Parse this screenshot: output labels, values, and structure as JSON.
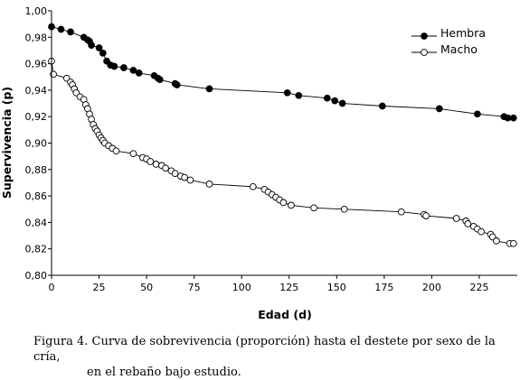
{
  "chart_data": {
    "type": "line",
    "xlabel": "Edad (d)",
    "ylabel": "Supervivencia (p)",
    "xlim": [
      0,
      245
    ],
    "ylim": [
      0.8,
      1.0
    ],
    "xticks": [
      "0",
      "25",
      "50",
      "75",
      "100",
      "125",
      "150",
      "175",
      "200",
      "225"
    ],
    "yticks": [
      "0,80",
      "0,82",
      "0,84",
      "0,86",
      "0,88",
      "0,90",
      "0,92",
      "0,94",
      "0,96",
      "0,98",
      "1,00"
    ],
    "legend_position": "top-right",
    "series": [
      {
        "name": "Hembra",
        "marker": "filled-circle",
        "color": "#000000",
        "points": [
          [
            0,
            0.988
          ],
          [
            5,
            0.986
          ],
          [
            10,
            0.984
          ],
          [
            17,
            0.98
          ],
          [
            19,
            0.978
          ],
          [
            20,
            0.977
          ],
          [
            21,
            0.974
          ],
          [
            25,
            0.972
          ],
          [
            27,
            0.968
          ],
          [
            29,
            0.962
          ],
          [
            31,
            0.959
          ],
          [
            33,
            0.958
          ],
          [
            38,
            0.957
          ],
          [
            43,
            0.955
          ],
          [
            46,
            0.953
          ],
          [
            54,
            0.951
          ],
          [
            56,
            0.949
          ],
          [
            57,
            0.948
          ],
          [
            65,
            0.945
          ],
          [
            66,
            0.944
          ],
          [
            83,
            0.941
          ],
          [
            124,
            0.938
          ],
          [
            130,
            0.936
          ],
          [
            145,
            0.934
          ],
          [
            149,
            0.932
          ],
          [
            153,
            0.93
          ],
          [
            174,
            0.928
          ],
          [
            204,
            0.926
          ],
          [
            224,
            0.922
          ],
          [
            238,
            0.92
          ],
          [
            240,
            0.919
          ],
          [
            243,
            0.919
          ]
        ]
      },
      {
        "name": "Macho",
        "marker": "open-circle",
        "color": "#000000",
        "points": [
          [
            0,
            0.962
          ],
          [
            1,
            0.952
          ],
          [
            8,
            0.949
          ],
          [
            10,
            0.946
          ],
          [
            11,
            0.944
          ],
          [
            12,
            0.941
          ],
          [
            13,
            0.938
          ],
          [
            15,
            0.935
          ],
          [
            17,
            0.933
          ],
          [
            18,
            0.929
          ],
          [
            19,
            0.926
          ],
          [
            20,
            0.922
          ],
          [
            21,
            0.918
          ],
          [
            22,
            0.914
          ],
          [
            23,
            0.911
          ],
          [
            24,
            0.909
          ],
          [
            25,
            0.906
          ],
          [
            26,
            0.904
          ],
          [
            27,
            0.902
          ],
          [
            28,
            0.9
          ],
          [
            30,
            0.898
          ],
          [
            32,
            0.896
          ],
          [
            34,
            0.894
          ],
          [
            43,
            0.892
          ],
          [
            48,
            0.889
          ],
          [
            50,
            0.888
          ],
          [
            52,
            0.886
          ],
          [
            55,
            0.884
          ],
          [
            58,
            0.883
          ],
          [
            60,
            0.881
          ],
          [
            63,
            0.879
          ],
          [
            65,
            0.877
          ],
          [
            68,
            0.875
          ],
          [
            70,
            0.874
          ],
          [
            73,
            0.872
          ],
          [
            83,
            0.869
          ],
          [
            106,
            0.867
          ],
          [
            112,
            0.865
          ],
          [
            114,
            0.863
          ],
          [
            116,
            0.861
          ],
          [
            118,
            0.859
          ],
          [
            120,
            0.857
          ],
          [
            122,
            0.855
          ],
          [
            126,
            0.853
          ],
          [
            138,
            0.851
          ],
          [
            154,
            0.85
          ],
          [
            184,
            0.848
          ],
          [
            196,
            0.846
          ],
          [
            197,
            0.845
          ],
          [
            213,
            0.843
          ],
          [
            218,
            0.841
          ],
          [
            219,
            0.839
          ],
          [
            222,
            0.837
          ],
          [
            224,
            0.835
          ],
          [
            226,
            0.833
          ],
          [
            231,
            0.831
          ],
          [
            232,
            0.829
          ],
          [
            234,
            0.826
          ],
          [
            241,
            0.824
          ],
          [
            243,
            0.824
          ]
        ]
      }
    ]
  },
  "caption": {
    "line1": "Figura 4. Curva de sobrevivencia (proporción) hasta el destete por sexo de la cría,",
    "line2": "en el rebaño bajo estudio."
  }
}
